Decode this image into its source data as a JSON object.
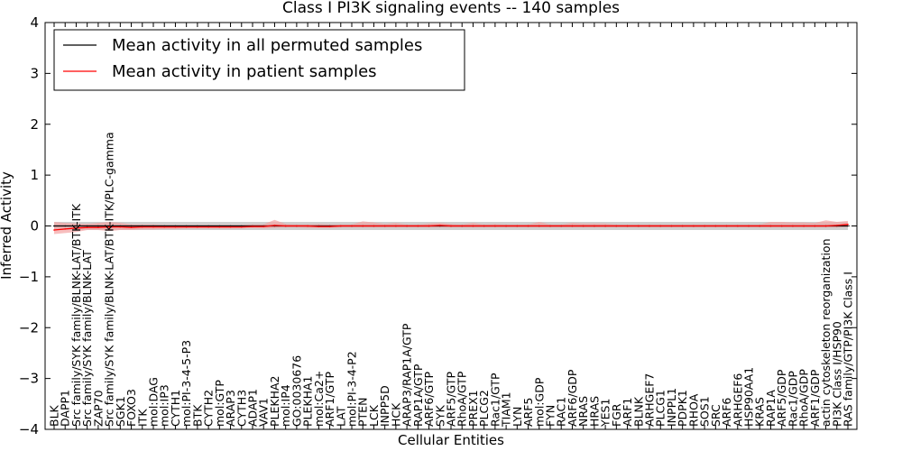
{
  "chart_data": {
    "type": "line",
    "title": "Class I PI3K signaling events -- 140 samples",
    "xlabel": "Cellular Entities",
    "ylabel": "Inferred Activity",
    "ylim": [
      -4,
      4
    ],
    "yticks": [
      -4,
      -3,
      -2,
      -1,
      0,
      1,
      2,
      3,
      4
    ],
    "grid": false,
    "legend_position": "top-left",
    "categories": [
      "BLK",
      "DAPP1",
      "Src family/SYK family/BLNK-LAT/BTK-ITK",
      "Src family/SYK family/BLNK-LAT",
      "ZAP70",
      "Src family/SYK family/BLNK-LAT/BTK-ITK/PLC-gamma",
      "SGK1",
      "FOXO3",
      "ITK",
      "mol:DAG",
      "mol:IP3",
      "CYTH1",
      "mol:PI-3-4-5-P3",
      "BTK",
      "CYTH2",
      "mol:GTP",
      "ARAP3",
      "CYTH3",
      "ADAP1",
      "VAV1",
      "PLEKHA2",
      "mol:IP4",
      "GO:0030676",
      "PLEKHA1",
      "mol:Ca2+",
      "ARF1/GTP",
      "LAT",
      "mol:PI-3-4-P2",
      "PTEN",
      "LCK",
      "INPP5D",
      "HCK",
      "ARAP3/RAP1A/GTP",
      "RAP1A/GTP",
      "ARF6/GTP",
      "SYK",
      "ARF5/GTP",
      "RhoA/GTP",
      "PREX1",
      "PLCG2",
      "Rac1/GTP",
      "TIAM1",
      "LYN",
      "ARF5",
      "mol:GDP",
      "FYN",
      "RAC1",
      "ARF6/GDP",
      "NRAS",
      "HRAS",
      "YES1",
      "FGR",
      "ARF1",
      "BLNK",
      "ARHGEF7",
      "PLCG1",
      "INPPL1",
      "PDPK1",
      "RHOA",
      "SOS1",
      "SRC",
      "ARF6",
      "ARHGEF6",
      "HSP90AA1",
      "KRAS",
      "RAP1A",
      "ARF5/GDP",
      "Rac1/GDP",
      "RhoA/GDP",
      "ARF1/GDP",
      "actin cytoskeleton reorganization",
      "PI3K Class I/HSP90",
      "RAS family/GTP/PI3K Class I"
    ],
    "series": [
      {
        "name": "Mean activity in all permuted samples",
        "color": "#000000",
        "band_color": "#bfbfbf",
        "values": [
          0.0,
          0.0,
          0.0,
          0.0,
          0.0,
          0.0,
          0.0,
          0.0,
          0.0,
          0.0,
          0.0,
          0.0,
          0.0,
          0.0,
          0.0,
          0.0,
          0.0,
          0.0,
          0.0,
          0.0,
          0.0,
          0.0,
          0.0,
          0.0,
          0.0,
          0.0,
          0.0,
          0.0,
          0.0,
          0.0,
          0.0,
          0.0,
          0.0,
          0.0,
          0.0,
          0.0,
          0.0,
          0.0,
          0.0,
          0.0,
          0.0,
          0.0,
          0.0,
          0.0,
          0.0,
          0.0,
          0.0,
          0.0,
          0.0,
          0.0,
          0.0,
          0.0,
          0.0,
          0.0,
          0.0,
          0.0,
          0.0,
          0.0,
          0.0,
          0.0,
          0.0,
          0.0,
          0.0,
          0.0,
          0.0,
          0.0,
          0.0,
          0.0,
          0.0,
          0.0,
          0.0,
          0.0,
          0.0
        ],
        "band_low": [
          -0.08,
          -0.08,
          -0.08,
          -0.08,
          -0.08,
          -0.08,
          -0.08,
          -0.08,
          -0.08,
          -0.08,
          -0.08,
          -0.08,
          -0.08,
          -0.08,
          -0.08,
          -0.08,
          -0.08,
          -0.08,
          -0.08,
          -0.08,
          -0.08,
          -0.08,
          -0.08,
          -0.08,
          -0.08,
          -0.08,
          -0.08,
          -0.08,
          -0.08,
          -0.08,
          -0.08,
          -0.08,
          -0.08,
          -0.08,
          -0.08,
          -0.08,
          -0.08,
          -0.08,
          -0.08,
          -0.08,
          -0.08,
          -0.08,
          -0.08,
          -0.08,
          -0.08,
          -0.08,
          -0.08,
          -0.08,
          -0.08,
          -0.08,
          -0.08,
          -0.08,
          -0.08,
          -0.08,
          -0.08,
          -0.08,
          -0.08,
          -0.08,
          -0.08,
          -0.08,
          -0.08,
          -0.08,
          -0.08,
          -0.08,
          -0.08,
          -0.08,
          -0.08,
          -0.08,
          -0.08,
          -0.08,
          -0.08,
          -0.08,
          -0.08
        ],
        "band_high": [
          0.08,
          0.08,
          0.08,
          0.08,
          0.08,
          0.08,
          0.08,
          0.08,
          0.08,
          0.08,
          0.08,
          0.08,
          0.08,
          0.08,
          0.08,
          0.08,
          0.08,
          0.08,
          0.08,
          0.08,
          0.08,
          0.08,
          0.08,
          0.08,
          0.08,
          0.08,
          0.08,
          0.08,
          0.08,
          0.08,
          0.08,
          0.08,
          0.08,
          0.08,
          0.08,
          0.08,
          0.08,
          0.08,
          0.08,
          0.08,
          0.08,
          0.08,
          0.08,
          0.08,
          0.08,
          0.08,
          0.08,
          0.08,
          0.08,
          0.08,
          0.08,
          0.08,
          0.08,
          0.08,
          0.08,
          0.08,
          0.08,
          0.08,
          0.08,
          0.08,
          0.08,
          0.08,
          0.08,
          0.08,
          0.08,
          0.08,
          0.08,
          0.08,
          0.08,
          0.08,
          0.08,
          0.08,
          0.08
        ]
      },
      {
        "name": "Mean activity in patient samples",
        "color": "#ff0000",
        "band_color": "#f4a3a3",
        "values": [
          -0.08,
          -0.06,
          -0.04,
          -0.03,
          -0.03,
          -0.02,
          -0.02,
          -0.03,
          -0.02,
          -0.02,
          -0.02,
          -0.02,
          -0.02,
          -0.02,
          -0.02,
          -0.02,
          -0.02,
          -0.02,
          -0.01,
          -0.01,
          0.01,
          0.0,
          0.0,
          0.0,
          -0.01,
          -0.01,
          0.0,
          0.0,
          0.0,
          0.0,
          0.0,
          0.0,
          0.0,
          0.0,
          0.0,
          0.01,
          0.0,
          0.0,
          0.0,
          0.0,
          0.0,
          0.0,
          0.0,
          0.0,
          0.0,
          0.0,
          0.0,
          0.0,
          0.0,
          0.0,
          0.0,
          0.0,
          0.0,
          0.0,
          0.0,
          0.0,
          0.0,
          0.0,
          0.0,
          0.0,
          0.0,
          0.0,
          0.0,
          0.0,
          0.0,
          0.0,
          0.0,
          0.0,
          0.0,
          0.0,
          0.0,
          0.01,
          0.03
        ],
        "band_low": [
          -0.16,
          -0.14,
          -0.12,
          -0.08,
          -0.08,
          -0.1,
          -0.08,
          -0.08,
          -0.07,
          -0.07,
          -0.06,
          -0.06,
          -0.05,
          -0.05,
          -0.05,
          -0.05,
          -0.05,
          -0.05,
          -0.04,
          -0.05,
          -0.04,
          -0.03,
          -0.03,
          -0.04,
          -0.04,
          -0.04,
          -0.03,
          -0.03,
          -0.03,
          -0.03,
          -0.03,
          -0.03,
          -0.03,
          -0.03,
          -0.03,
          -0.03,
          -0.03,
          -0.03,
          -0.03,
          -0.03,
          -0.03,
          -0.03,
          -0.03,
          -0.03,
          -0.03,
          -0.03,
          -0.03,
          -0.03,
          -0.03,
          -0.03,
          -0.03,
          -0.03,
          -0.03,
          -0.03,
          -0.03,
          -0.03,
          -0.03,
          -0.03,
          -0.03,
          -0.03,
          -0.03,
          -0.03,
          -0.03,
          -0.03,
          -0.03,
          -0.03,
          -0.03,
          -0.03,
          -0.03,
          -0.03,
          -0.03,
          -0.03,
          -0.02
        ],
        "band_high": [
          0.08,
          0.06,
          0.05,
          0.04,
          0.06,
          0.08,
          0.06,
          0.03,
          0.03,
          0.03,
          0.02,
          0.02,
          0.02,
          0.02,
          0.02,
          0.02,
          0.02,
          0.02,
          0.03,
          0.03,
          0.12,
          0.04,
          0.03,
          0.03,
          0.04,
          0.03,
          0.03,
          0.03,
          0.09,
          0.07,
          0.04,
          0.06,
          0.03,
          0.03,
          0.05,
          0.06,
          0.04,
          0.03,
          0.06,
          0.03,
          0.04,
          0.03,
          0.03,
          0.03,
          0.08,
          0.03,
          0.03,
          0.06,
          0.05,
          0.05,
          0.05,
          0.03,
          0.03,
          0.03,
          0.03,
          0.03,
          0.03,
          0.03,
          0.03,
          0.03,
          0.03,
          0.03,
          0.03,
          0.03,
          0.03,
          0.08,
          0.08,
          0.07,
          0.07,
          0.06,
          0.11,
          0.08,
          0.1
        ]
      }
    ]
  }
}
